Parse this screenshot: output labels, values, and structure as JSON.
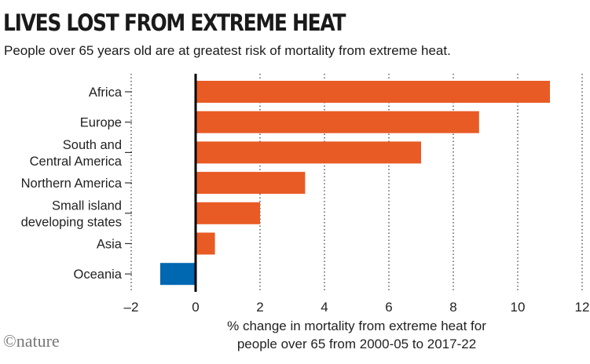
{
  "title": "LIVES LOST FROM EXTREME HEAT",
  "subtitle": "People over 65 years old are at greatest risk of mortality from extreme heat.",
  "logo": "©nature",
  "colors": {
    "positive": "#E85B25",
    "negative": "#0067B1"
  },
  "chart_data": {
    "type": "bar",
    "orientation": "horizontal",
    "categories": [
      [
        "Africa"
      ],
      [
        "Europe"
      ],
      [
        "South and",
        "Central America"
      ],
      [
        "Northern America"
      ],
      [
        "Small island",
        "developing states"
      ],
      [
        "Asia"
      ],
      [
        "Oceania"
      ]
    ],
    "values": [
      11.0,
      8.8,
      7.0,
      3.4,
      2.0,
      0.6,
      -1.1
    ],
    "xlim": [
      -2,
      12
    ],
    "xticks": [
      "–2",
      "0",
      "2",
      "4",
      "6",
      "8",
      "10",
      "12"
    ],
    "xtick_values": [
      -2,
      0,
      2,
      4,
      6,
      8,
      10,
      12
    ],
    "xlabel": [
      "% change in mortality from extreme heat for",
      "people over 65 from 2000-05 to 2017-22"
    ],
    "grid": "vertical dotted"
  }
}
